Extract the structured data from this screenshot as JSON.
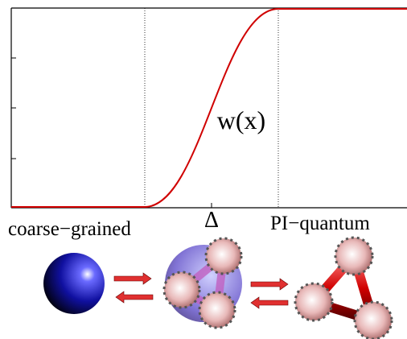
{
  "plot": {
    "curve_label": "w(x)",
    "x_marker": "Δ"
  },
  "labels": {
    "left": "coarse−grained",
    "right": "PI−quantum"
  }
}
